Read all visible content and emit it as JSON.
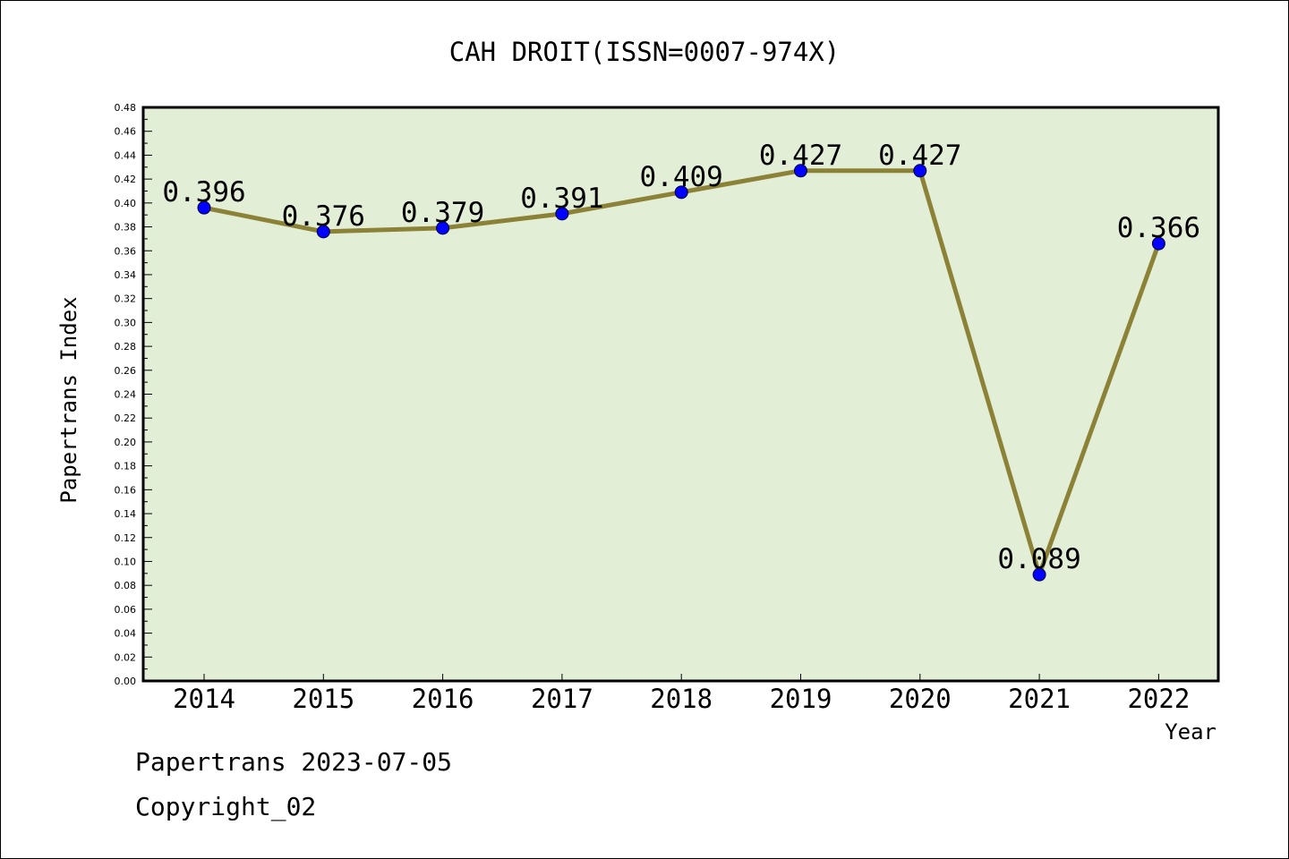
{
  "chart_data": {
    "type": "line",
    "title": "CAH DROIT(ISSN=0007-974X)",
    "xlabel": "Year",
    "ylabel": "Papertrans Index",
    "categories": [
      "2014",
      "2015",
      "2016",
      "2017",
      "2018",
      "2019",
      "2020",
      "2021",
      "2022"
    ],
    "series": [
      {
        "values": [
          0.396,
          0.376,
          0.379,
          0.391,
          0.409,
          0.427,
          0.427,
          0.089,
          0.366
        ],
        "labels": [
          "0.396",
          "0.376",
          "0.379",
          "0.391",
          "0.409",
          "0.427",
          "0.427",
          "0.089",
          "0.366"
        ]
      }
    ],
    "ylim": [
      0,
      0.48
    ],
    "y_ticks": [
      "0.00",
      "0.02",
      "0.04",
      "0.06",
      "0.08",
      "0.10",
      "0.12",
      "0.14",
      "0.16",
      "0.18",
      "0.20",
      "0.22",
      "0.24",
      "0.26",
      "0.28",
      "0.30",
      "0.32",
      "0.34",
      "0.36",
      "0.38",
      "0.40",
      "0.42",
      "0.44",
      "0.46",
      "0.48"
    ],
    "grid": false,
    "legend": "none",
    "colors": {
      "plot_background": "#e2efd6",
      "line": "#8c8237",
      "marker": "#0000ff"
    }
  },
  "footer": {
    "source": "Papertrans 2023-07-05",
    "copyright": "Copyright_02"
  }
}
